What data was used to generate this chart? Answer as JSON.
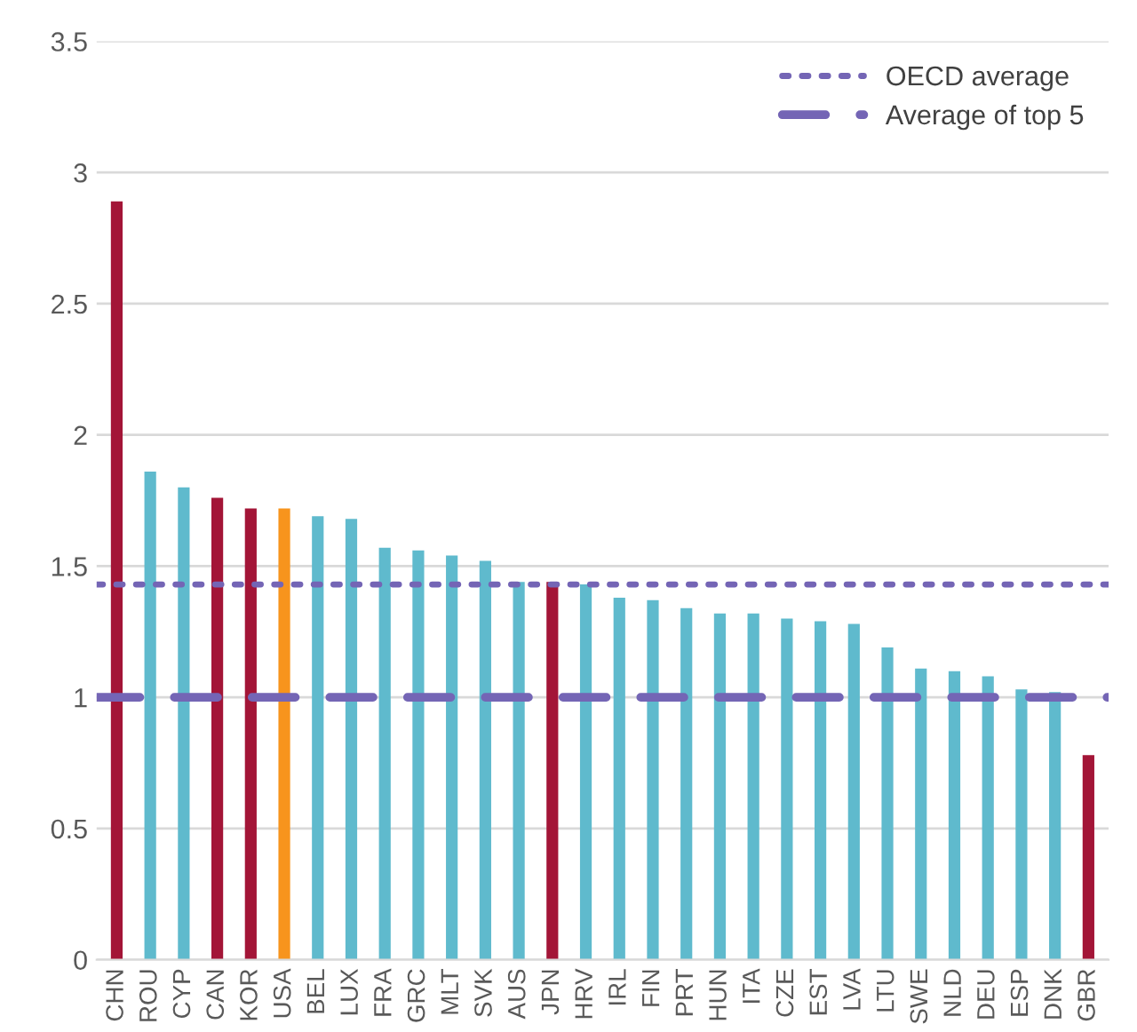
{
  "chart_data": {
    "type": "bar",
    "categories": [
      "CHN",
      "ROU",
      "CYP",
      "CAN",
      "KOR",
      "USA",
      "BEL",
      "LUX",
      "FRA",
      "GRC",
      "MLT",
      "SVK",
      "AUS",
      "JPN",
      "HRV",
      "IRL",
      "FIN",
      "PRT",
      "HUN",
      "ITA",
      "CZE",
      "EST",
      "LVA",
      "LTU",
      "SWE",
      "NLD",
      "DEU",
      "ESP",
      "DNK",
      "GBR"
    ],
    "values": [
      2.89,
      1.86,
      1.8,
      1.76,
      1.72,
      1.72,
      1.69,
      1.68,
      1.57,
      1.56,
      1.54,
      1.52,
      1.44,
      1.44,
      1.43,
      1.38,
      1.37,
      1.34,
      1.32,
      1.32,
      1.3,
      1.29,
      1.28,
      1.19,
      1.11,
      1.1,
      1.08,
      1.03,
      1.02,
      0.78
    ],
    "colors": [
      "#a31537",
      "#5fbacd",
      "#5fbacd",
      "#a31537",
      "#a31537",
      "#f7941d",
      "#5fbacd",
      "#5fbacd",
      "#5fbacd",
      "#5fbacd",
      "#5fbacd",
      "#5fbacd",
      "#5fbacd",
      "#a31537",
      "#5fbacd",
      "#5fbacd",
      "#5fbacd",
      "#5fbacd",
      "#5fbacd",
      "#5fbacd",
      "#5fbacd",
      "#5fbacd",
      "#5fbacd",
      "#5fbacd",
      "#5fbacd",
      "#5fbacd",
      "#5fbacd",
      "#5fbacd",
      "#5fbacd",
      "#a31537"
    ],
    "ylim": [
      0,
      3.5
    ],
    "yticks": [
      0,
      0.5,
      1,
      1.5,
      2,
      2.5,
      3,
      3.5
    ],
    "grid": "y",
    "legend": "top right",
    "ref_lines": [
      {
        "axis": "y",
        "value": 1.43,
        "label": "OECD average",
        "color": "#7465b5",
        "line_style": "dotted"
      },
      {
        "axis": "y",
        "value": 1.0,
        "label": "Average of top 5",
        "color": "#7465b5",
        "line_style": "dashed"
      }
    ]
  }
}
